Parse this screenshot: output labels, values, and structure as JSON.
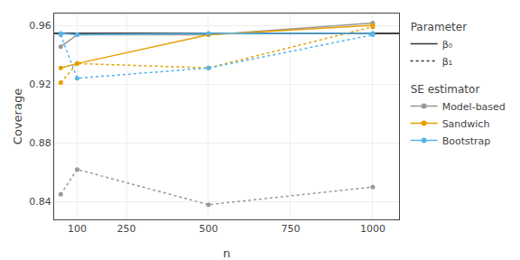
{
  "chart_data": {
    "type": "line",
    "xlabel": "n",
    "ylabel": "Coverage",
    "x": [
      50,
      100,
      500,
      1000
    ],
    "xlim": [
      30,
      1080
    ],
    "xticks": [
      100,
      250,
      500,
      750,
      1000
    ],
    "ylim": [
      0.828,
      0.968
    ],
    "yticks": [
      0.84,
      0.88,
      0.92,
      0.96
    ],
    "grid": true,
    "reference_line": {
      "value": 0.9545,
      "color": "#000000"
    },
    "legend_titles": {
      "parameter": "Parameter",
      "estimator": "SE estimator"
    },
    "series": [
      {
        "name": "Model-based",
        "parameter": "β₀",
        "color": "#999999",
        "line_style": "solid",
        "marker": "circle",
        "values": [
          0.9455,
          0.9535,
          0.9535,
          0.9615
        ]
      },
      {
        "name": "Model-based",
        "parameter": "β₁",
        "color": "#999999",
        "line_style": "dotted",
        "marker": "circle",
        "values": [
          0.845,
          0.862,
          0.838,
          0.85
        ]
      },
      {
        "name": "Sandwich",
        "parameter": "β₀",
        "color": "#E69F00",
        "line_style": "solid",
        "marker": "circle",
        "values": [
          0.931,
          0.934,
          0.9535,
          0.96
        ]
      },
      {
        "name": "Sandwich",
        "parameter": "β₁",
        "color": "#E69F00",
        "line_style": "dotted",
        "marker": "circle",
        "values": [
          0.921,
          0.934,
          0.931,
          0.959
        ]
      },
      {
        "name": "Bootstrap",
        "parameter": "β₀",
        "color": "#56B4E9",
        "line_style": "solid",
        "marker": "circle",
        "values": [
          0.9545,
          0.9535,
          0.9545,
          0.9545
        ]
      },
      {
        "name": "Bootstrap",
        "parameter": "β₁",
        "color": "#56B4E9",
        "line_style": "dotted",
        "marker": "circle",
        "values": [
          0.9535,
          0.924,
          0.931,
          0.9535
        ]
      }
    ]
  }
}
